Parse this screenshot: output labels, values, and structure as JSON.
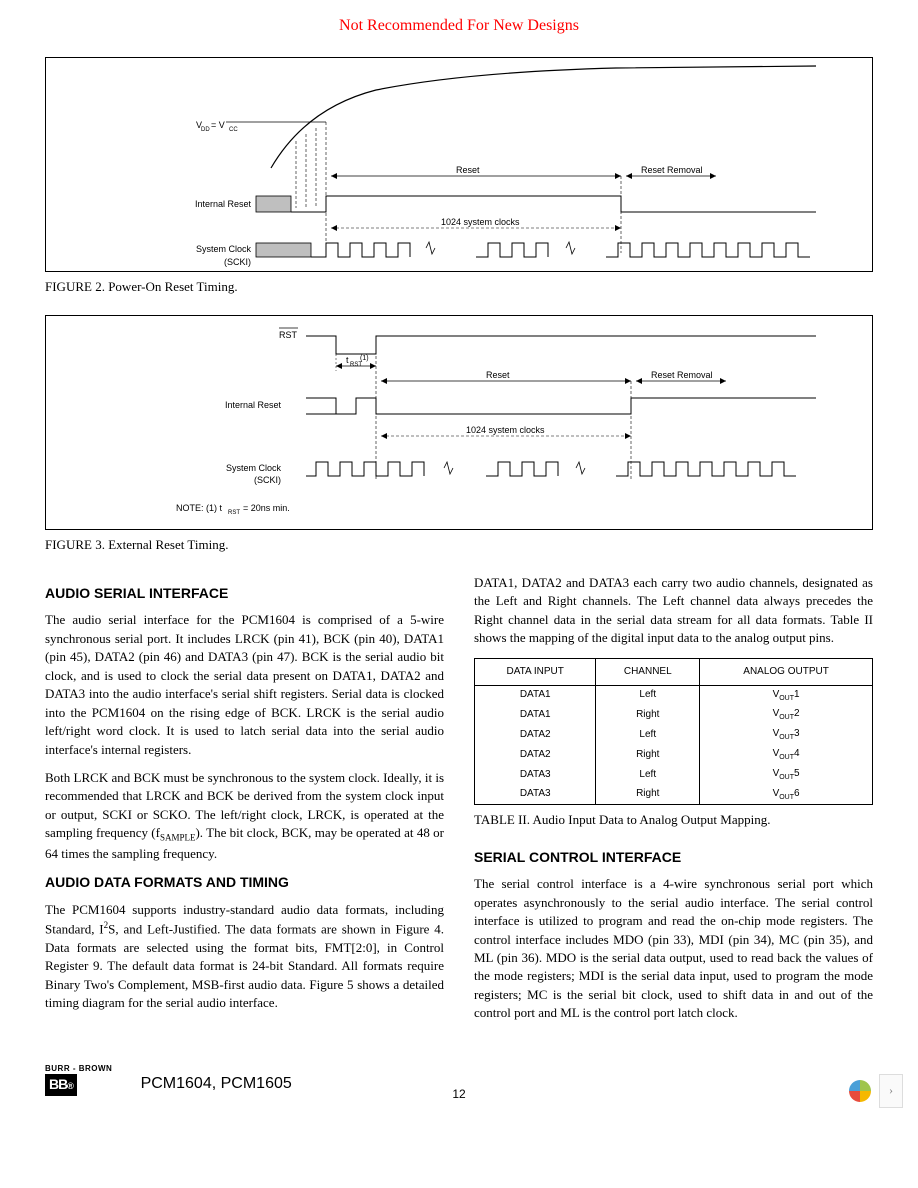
{
  "watermark": {
    "text": "Not Recommended For New Designs",
    "color": "#ff0000"
  },
  "figure2": {
    "caption": "FIGURE 2. Power-On Reset Timing.",
    "vlabel": "V",
    "vsub1": "DD",
    "vsub2": "CC",
    "vdash": " = V",
    "reset_label": "Reset",
    "reset_removal": "Reset Removal",
    "clocks_label": "1024 system clocks",
    "internal_reset": "Internal Reset",
    "system_clock": "System Clock",
    "system_clock_sub": "(SCKI)"
  },
  "figure3": {
    "caption": "FIGURE 3. External Reset Timing.",
    "rst_label": "RST",
    "t_label": "t",
    "t_sub": "RST",
    "note": "NOTE: (1) t",
    "note_sub": "RST",
    "note_tail": " = 20ns min.",
    "reset_label": "Reset",
    "reset_removal": "Reset Removal",
    "clocks_label": "1024 system clocks",
    "internal_reset": "Internal Reset",
    "system_clock": "System Clock",
    "system_clock_sub": "(SCKI)"
  },
  "section_audio_serial": {
    "heading": "AUDIO SERIAL INTERFACE",
    "p1": "The audio serial interface for the PCM1604 is comprised of a 5-wire synchronous serial port. It includes LRCK (pin 41), BCK (pin 40), DATA1 (pin 45), DATA2 (pin 46) and DATA3 (pin 47). BCK is the serial audio bit clock, and is used to clock the serial data present on DATA1, DATA2 and DATA3 into the audio interface's serial shift registers. Serial data is clocked into the PCM1604 on the rising edge of BCK. LRCK is the serial audio left/right word clock. It is used to latch serial data into the serial audio interface's internal registers.",
    "p2": "Both LRCK and BCK must be synchronous to the system clock. Ideally, it is recommended that LRCK and BCK be derived from the system clock input or output, SCKI or SCKO. The left/right clock, LRCK, is operated at the sampling frequency (f",
    "p2_sub": "SAMPLE",
    "p2_tail": "). The bit clock, BCK, may be operated at 48 or 64 times the sampling frequency."
  },
  "section_audio_formats": {
    "heading": "AUDIO DATA FORMATS AND TIMING",
    "p1_a": "The PCM1604 supports industry-standard audio data formats, including Standard, I",
    "p1_sup": "2",
    "p1_b": "S, and Left-Justified. The data formats are shown in Figure 4. Data formats are selected using the format bits, FMT[2:0], in Control Register 9. The default data format is 24-bit Standard. All formats require Binary Two's Complement, MSB-first audio data. Figure 5 shows a detailed timing diagram for the serial audio interface."
  },
  "right_intro": "DATA1, DATA2 and DATA3 each carry two audio channels, designated as the Left and Right channels. The Left channel data always precedes the Right channel data in the serial data stream for all data formats. Table II shows the mapping of the digital input data to the analog output pins.",
  "table2": {
    "caption": "TABLE II. Audio Input Data to Analog Output Mapping.",
    "headers": [
      "DATA INPUT",
      "CHANNEL",
      "ANALOG OUTPUT"
    ],
    "rows": [
      [
        "DATA1",
        "Left",
        "V",
        "OUT",
        "1"
      ],
      [
        "DATA1",
        "Right",
        "V",
        "OUT",
        "2"
      ],
      [
        "DATA2",
        "Left",
        "V",
        "OUT",
        "3"
      ],
      [
        "DATA2",
        "Right",
        "V",
        "OUT",
        "4"
      ],
      [
        "DATA3",
        "Left",
        "V",
        "OUT",
        "5"
      ],
      [
        "DATA3",
        "Right",
        "V",
        "OUT",
        "6"
      ]
    ]
  },
  "section_serial_control": {
    "heading": "SERIAL CONTROL INTERFACE",
    "p1": "The serial control interface is a 4-wire synchronous serial port which operates asynchronously to the serial audio interface. The serial control interface is utilized to program and read the on-chip mode registers. The control interface includes MDO (pin 33), MDI (pin 34), MC (pin 35), and ML (pin 36). MDO is the serial data output, used to read back the values of the mode registers; MDI is the serial data input, used to program the mode registers; MC is the serial bit clock, used to shift data in and out of the control port and ML is the control port latch clock."
  },
  "footer": {
    "logo_top": "BURR - BROWN",
    "logo_bottom": "BB",
    "product": "PCM1604, PCM1605",
    "page": "12"
  },
  "style": {
    "watermark_color": "#ff0000",
    "text_color": "#000000",
    "border_color": "#000000",
    "hatch_fill": "#bfbfbf"
  }
}
